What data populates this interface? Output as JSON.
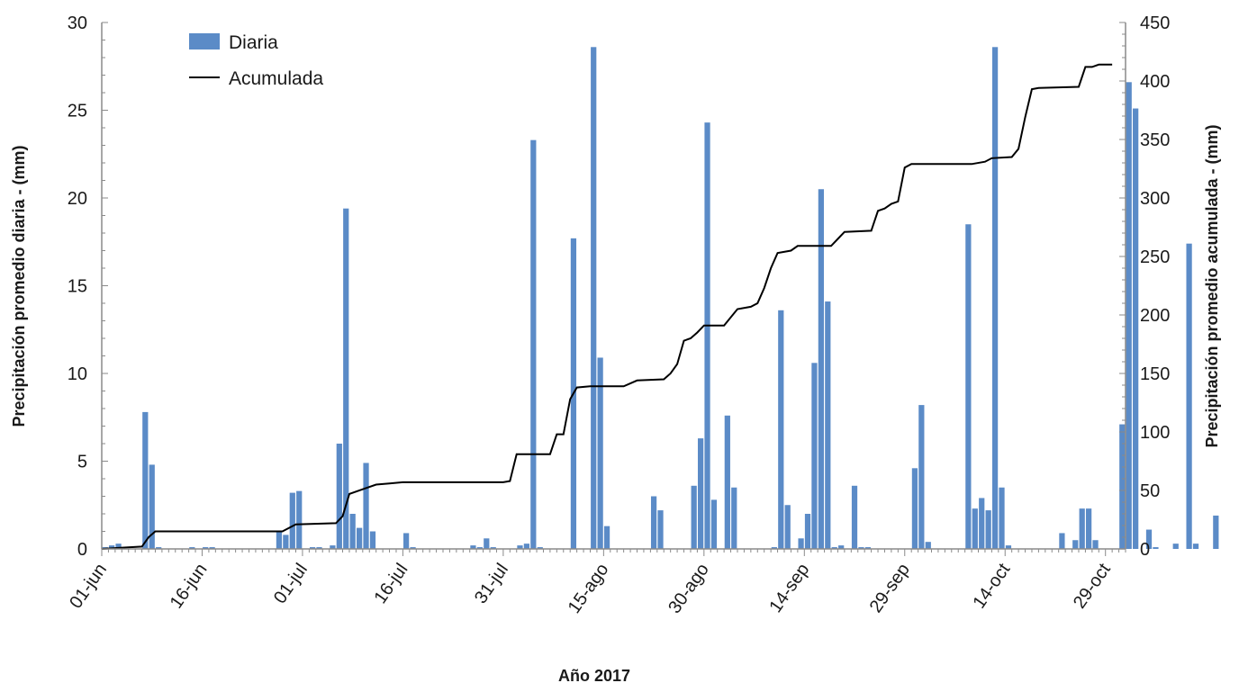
{
  "chart_data": {
    "type": "bar",
    "xlabel": "Año 2017",
    "ylabel_left": "Precipitación promedio diaria - (mm)",
    "ylabel_right": "Precipitación promedio acumulada - (mm)",
    "ylim_left": [
      0,
      30
    ],
    "ylim_right": [
      0,
      450
    ],
    "yticks_left": [
      "0",
      "5",
      "10",
      "15",
      "20",
      "25",
      "30"
    ],
    "yticks_right": [
      "0",
      "50",
      "100",
      "150",
      "200",
      "250",
      "300",
      "350",
      "400",
      "450"
    ],
    "xticks": [
      "01-jun",
      "16-jun",
      "01-jul",
      "16-jul",
      "31-jul",
      "15-ago",
      "30-ago",
      "14-sep",
      "29-sep",
      "14-oct",
      "29-oct"
    ],
    "grid": false,
    "legend_position": "top-left",
    "colors": {
      "bar": "#5b8bc7",
      "line": "#000000",
      "axis": "#8a8a8a"
    },
    "series": [
      {
        "name": "Diaria",
        "type": "bar",
        "axis": "left",
        "x_start": "01-jun",
        "values": [
          0.1,
          0.2,
          0.3,
          0,
          0,
          0,
          7.8,
          4.8,
          0.1,
          0,
          0,
          0,
          0,
          0.1,
          0,
          0.1,
          0.1,
          0,
          0,
          0,
          0,
          0,
          0,
          0,
          0,
          0,
          1.0,
          0.8,
          3.2,
          3.3,
          0,
          0.1,
          0.1,
          0,
          0.2,
          6.0,
          19.4,
          2.0,
          1.2,
          4.9,
          1.0,
          0,
          0,
          0,
          0,
          0.9,
          0.1,
          0,
          0,
          0,
          0,
          0,
          0,
          0,
          0,
          0.2,
          0.1,
          0.6,
          0.1,
          0,
          0,
          0,
          0.2,
          0.3,
          23.3,
          0.1,
          0,
          0,
          0,
          0,
          17.7,
          0,
          0,
          28.6,
          10.9,
          1.3,
          0,
          0,
          0,
          0,
          0,
          0,
          3.0,
          2.2,
          0,
          0,
          0,
          0,
          3.6,
          6.3,
          24.3,
          2.8,
          0,
          7.6,
          3.5,
          0,
          0,
          0,
          0,
          0,
          0.1,
          13.6,
          2.5,
          0,
          0.6,
          2.0,
          10.6,
          20.5,
          14.1,
          0.1,
          0.2,
          0,
          3.6,
          0.1,
          0.1,
          0,
          0,
          0,
          0,
          0,
          0,
          4.6,
          8.2,
          0.4,
          0,
          0,
          0,
          0,
          0,
          18.5,
          2.3,
          2.9,
          2.2,
          28.6,
          3.5,
          0.2,
          0,
          0,
          0,
          0,
          0,
          0,
          0,
          0.9,
          0,
          0.5,
          2.3,
          2.3,
          0.5,
          0,
          0,
          0,
          7.1,
          26.6,
          25.1,
          0,
          1.1,
          0.1,
          0,
          0,
          0.3,
          0,
          17.4,
          0.3,
          0,
          0,
          1.9,
          0
        ]
      },
      {
        "name": "Acumulada",
        "type": "line",
        "axis": "right",
        "points": [
          [
            "01-jun",
            0
          ],
          [
            "07-jun",
            2
          ],
          [
            "08-jun",
            10
          ],
          [
            "09-jun",
            15
          ],
          [
            "28-jun",
            15
          ],
          [
            "30-jun",
            21
          ],
          [
            "06-jul",
            22
          ],
          [
            "07-jul",
            28
          ],
          [
            "08-jul",
            47
          ],
          [
            "10-jul",
            51
          ],
          [
            "12-jul",
            55
          ],
          [
            "14-jul",
            56
          ],
          [
            "16-jul",
            57
          ],
          [
            "20-jul",
            57
          ],
          [
            "31-jul",
            57
          ],
          [
            "01-ago",
            58
          ],
          [
            "02-ago",
            81
          ],
          [
            "07-ago",
            81
          ],
          [
            "08-ago",
            98
          ],
          [
            "09-ago",
            98
          ],
          [
            "10-ago",
            128
          ],
          [
            "11-ago",
            138
          ],
          [
            "13-ago",
            139
          ],
          [
            "18-ago",
            139
          ],
          [
            "20-ago",
            144
          ],
          [
            "24-ago",
            145
          ],
          [
            "25-ago",
            150
          ],
          [
            "26-ago",
            158
          ],
          [
            "27-ago",
            178
          ],
          [
            "28-ago",
            180
          ],
          [
            "29-ago",
            185
          ],
          [
            "30-ago",
            191
          ],
          [
            "02-sep",
            191
          ],
          [
            "04-sep",
            205
          ],
          [
            "06-sep",
            207
          ],
          [
            "07-sep",
            210
          ],
          [
            "08-sep",
            223
          ],
          [
            "09-sep",
            240
          ],
          [
            "10-sep",
            253
          ],
          [
            "12-sep",
            255
          ],
          [
            "13-sep",
            259
          ],
          [
            "18-sep",
            259
          ],
          [
            "19-sep",
            265
          ],
          [
            "20-sep",
            271
          ],
          [
            "24-sep",
            272
          ],
          [
            "25-sep",
            289
          ],
          [
            "26-sep",
            291
          ],
          [
            "27-sep",
            295
          ],
          [
            "28-sep",
            297
          ],
          [
            "29-sep",
            326
          ],
          [
            "30-sep",
            329
          ],
          [
            "09-oct",
            329
          ],
          [
            "11-oct",
            331
          ],
          [
            "12-oct",
            334
          ],
          [
            "15-oct",
            335
          ],
          [
            "16-oct",
            342
          ],
          [
            "17-oct",
            369
          ],
          [
            "18-oct",
            393
          ],
          [
            "19-oct",
            394
          ],
          [
            "25-oct",
            395
          ],
          [
            "26-oct",
            412
          ],
          [
            "27-oct",
            412
          ],
          [
            "28-oct",
            414
          ],
          [
            "30-oct",
            414
          ]
        ]
      }
    ]
  }
}
